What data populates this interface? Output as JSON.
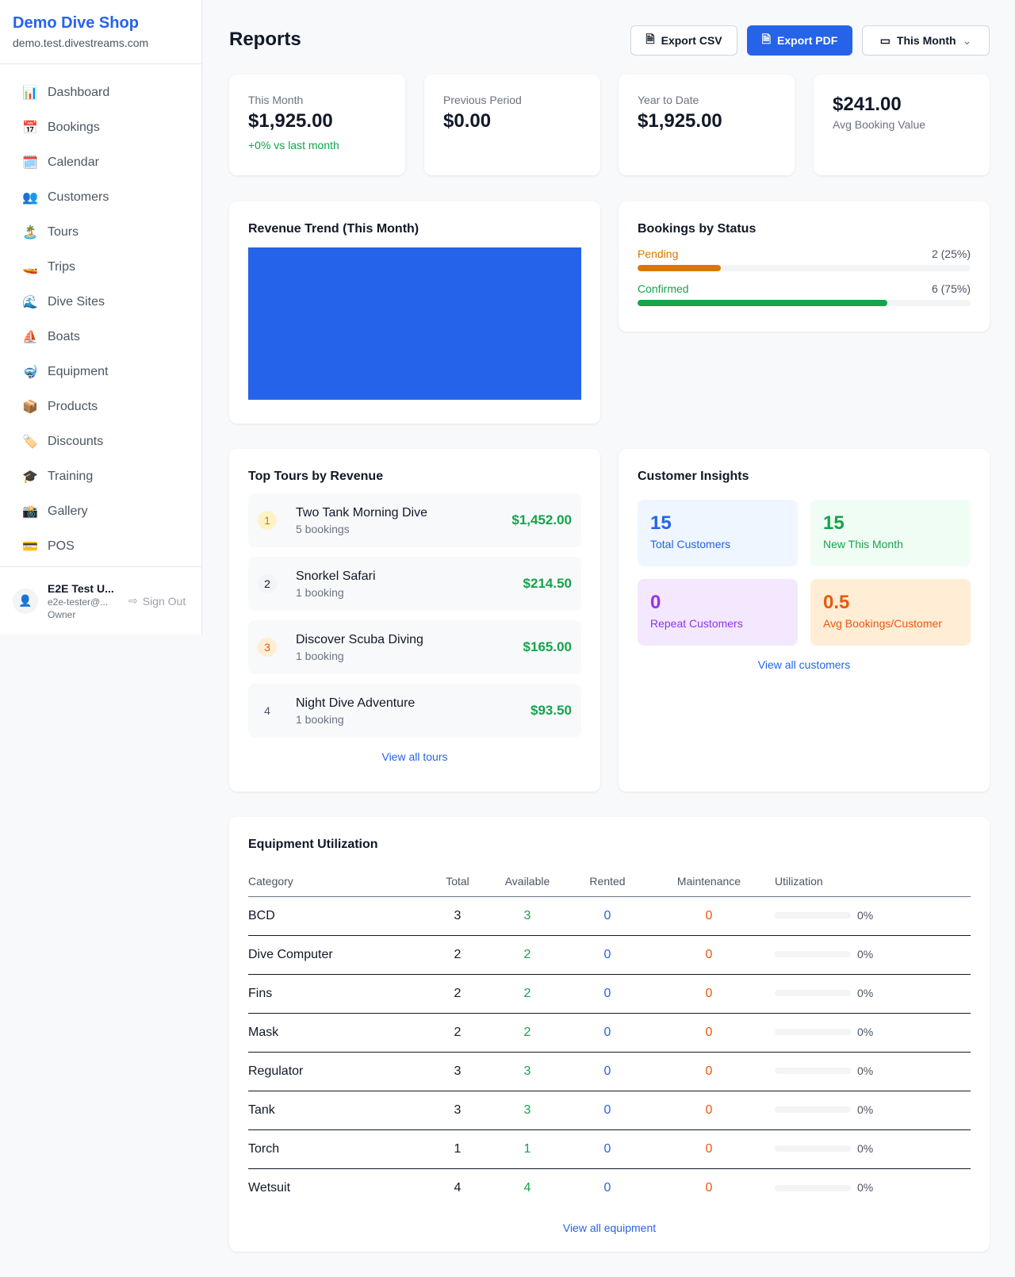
{
  "sidebar": {
    "shop_name": "Demo Dive Shop",
    "domain": "demo.test.divestreams.com",
    "items": [
      {
        "icon": "📊",
        "label": "Dashboard"
      },
      {
        "icon": "📅",
        "label": "Bookings"
      },
      {
        "icon": "🗓️",
        "label": "Calendar"
      },
      {
        "icon": "👥",
        "label": "Customers"
      },
      {
        "icon": "🏝️",
        "label": "Tours"
      },
      {
        "icon": "🚤",
        "label": "Trips"
      },
      {
        "icon": "🌊",
        "label": "Dive Sites"
      },
      {
        "icon": "⛵",
        "label": "Boats"
      },
      {
        "icon": "🤿",
        "label": "Equipment"
      },
      {
        "icon": "📦",
        "label": "Products"
      },
      {
        "icon": "🏷️",
        "label": "Discounts"
      },
      {
        "icon": "🎓",
        "label": "Training"
      },
      {
        "icon": "📸",
        "label": "Gallery"
      },
      {
        "icon": "💳",
        "label": "POS"
      }
    ],
    "user": {
      "name": "E2E Test U...",
      "email": "e2e-tester@...",
      "role": "Owner",
      "sign_out": "Sign Out"
    }
  },
  "header": {
    "title": "Reports",
    "export_csv": "Export CSV",
    "export_pdf": "Export PDF",
    "period": "This Month"
  },
  "stats": [
    {
      "label": "This Month",
      "value": "$1,925.00",
      "change": "+0% vs last month"
    },
    {
      "label": "Previous Period",
      "value": "$0.00"
    },
    {
      "label": "Year to Date",
      "value": "$1,925.00"
    },
    {
      "label": "Avg Booking Value",
      "value": "$241.00"
    }
  ],
  "revenue": {
    "title": "Revenue Trend (This Month)",
    "color": "#2563eb"
  },
  "bookings_status": {
    "title": "Bookings by Status",
    "items": [
      {
        "label": "Pending",
        "count": "2 (25%)",
        "percent": 25,
        "color": "#d97706"
      },
      {
        "label": "Confirmed",
        "count": "6 (75%)",
        "percent": 75,
        "color": "#16a34a"
      }
    ]
  },
  "top_tours": {
    "title": "Top Tours by Revenue",
    "link": "View all tours",
    "items": [
      {
        "rank": "1",
        "name": "Two Tank Morning Dive",
        "bookings": "5 bookings",
        "revenue": "$1,452.00"
      },
      {
        "rank": "2",
        "name": "Snorkel Safari",
        "bookings": "1 booking",
        "revenue": "$214.50"
      },
      {
        "rank": "3",
        "name": "Discover Scuba Diving",
        "bookings": "1 booking",
        "revenue": "$165.00"
      },
      {
        "rank": "4",
        "name": "Night Dive Adventure",
        "bookings": "1 booking",
        "revenue": "$93.50"
      }
    ]
  },
  "customer_insights": {
    "title": "Customer Insights",
    "link": "View all customers",
    "items": [
      {
        "value": "15",
        "label": "Total Customers"
      },
      {
        "value": "15",
        "label": "New This Month"
      },
      {
        "value": "0",
        "label": "Repeat Customers"
      },
      {
        "value": "0.5",
        "label": "Avg Bookings/Customer"
      }
    ]
  },
  "equipment": {
    "title": "Equipment Utilization",
    "link": "View all equipment",
    "columns": [
      "Category",
      "Total",
      "Available",
      "Rented",
      "Maintenance",
      "Utilization"
    ],
    "rows": [
      {
        "category": "BCD",
        "total": "3",
        "available": "3",
        "rented": "0",
        "maintenance": "0",
        "utilization": "0%"
      },
      {
        "category": "Dive Computer",
        "total": "2",
        "available": "2",
        "rented": "0",
        "maintenance": "0",
        "utilization": "0%"
      },
      {
        "category": "Fins",
        "total": "2",
        "available": "2",
        "rented": "0",
        "maintenance": "0",
        "utilization": "0%"
      },
      {
        "category": "Mask",
        "total": "2",
        "available": "2",
        "rented": "0",
        "maintenance": "0",
        "utilization": "0%"
      },
      {
        "category": "Regulator",
        "total": "3",
        "available": "3",
        "rented": "0",
        "maintenance": "0",
        "utilization": "0%"
      },
      {
        "category": "Tank",
        "total": "3",
        "available": "3",
        "rented": "0",
        "maintenance": "0",
        "utilization": "0%"
      },
      {
        "category": "Torch",
        "total": "1",
        "available": "1",
        "rented": "0",
        "maintenance": "0",
        "utilization": "0%"
      },
      {
        "category": "Wetsuit",
        "total": "4",
        "available": "4",
        "rented": "0",
        "maintenance": "0",
        "utilization": "0%"
      }
    ]
  }
}
